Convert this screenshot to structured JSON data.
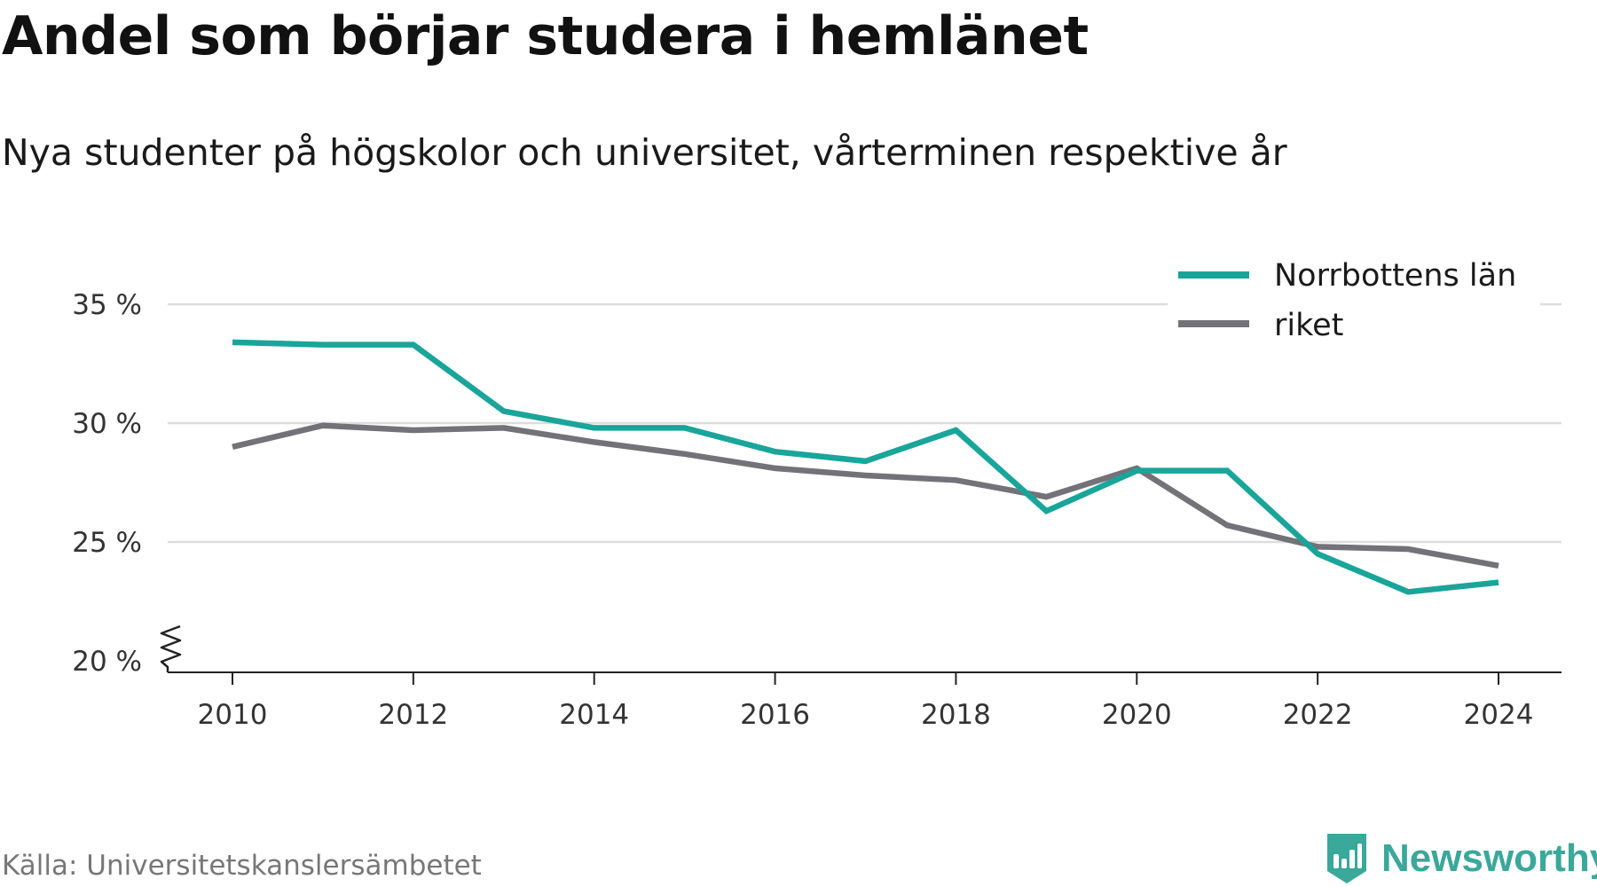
{
  "title": "Andel som börjar studera i hemlänet",
  "subtitle": "Nya studenter på högskolor och universitet, vårterminen respektive år",
  "source": "Källa: Universitetskanslersämbetet",
  "brand": {
    "name": "Newsworthy",
    "logo_icon": "newsworthy-bar-chart-icon"
  },
  "colors": {
    "norrbotten": "#1aa59a",
    "riket": "#737278",
    "grid": "#dddddd",
    "axis": "#222222",
    "brand": "#3aa89a"
  },
  "chart_data": {
    "type": "line",
    "title": "",
    "xlabel": "",
    "ylabel": "",
    "x": [
      2010,
      2011,
      2012,
      2013,
      2014,
      2015,
      2016,
      2017,
      2018,
      2019,
      2020,
      2021,
      2022,
      2023,
      2024
    ],
    "xticks": [
      "2010",
      "2012",
      "2014",
      "2016",
      "2018",
      "2020",
      "2022",
      "2024"
    ],
    "yticks": [
      "20 %",
      "25 %",
      "30 %",
      "35 %"
    ],
    "ylim": [
      20,
      35
    ],
    "y_axis_break": true,
    "grid": true,
    "legend_position": "top-right",
    "series": [
      {
        "name": "Norrbottens län",
        "color": "#1aa59a",
        "values": [
          33.4,
          33.3,
          33.3,
          30.5,
          29.8,
          29.8,
          28.8,
          28.4,
          29.7,
          26.3,
          28.0,
          28.0,
          24.5,
          22.9,
          23.3
        ]
      },
      {
        "name": "riket",
        "color": "#737278",
        "values": [
          29.0,
          29.9,
          29.7,
          29.8,
          29.2,
          28.7,
          28.1,
          27.8,
          27.6,
          26.9,
          28.1,
          25.7,
          24.8,
          24.7,
          24.0
        ]
      }
    ]
  }
}
